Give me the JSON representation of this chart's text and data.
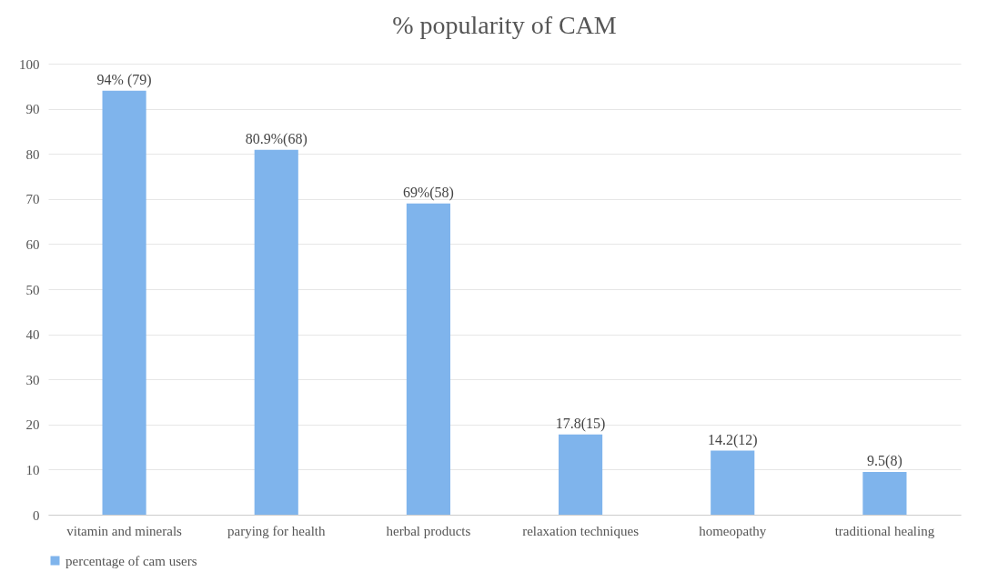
{
  "chart_data": {
    "type": "bar",
    "title": "% popularity of CAM",
    "categories": [
      "vitamin and minerals",
      "parying for health",
      "herbal products",
      "relaxation techniques",
      "homeopathy",
      "traditional healing"
    ],
    "series": [
      {
        "name": "percentage of cam users",
        "color": "#7fb4ec",
        "values": [
          94,
          80.9,
          69,
          17.8,
          14.2,
          9.5
        ],
        "value_labels": [
          "94% (79)",
          "80.9%(68)",
          "69%(58)",
          "17.8(15)",
          "14.2(12)",
          "9.5(8)"
        ]
      }
    ],
    "ylim": [
      0,
      100
    ],
    "yticks": [
      0,
      10,
      20,
      30,
      40,
      50,
      60,
      70,
      80,
      90,
      100
    ],
    "grid": "y",
    "legend": "bottom"
  }
}
